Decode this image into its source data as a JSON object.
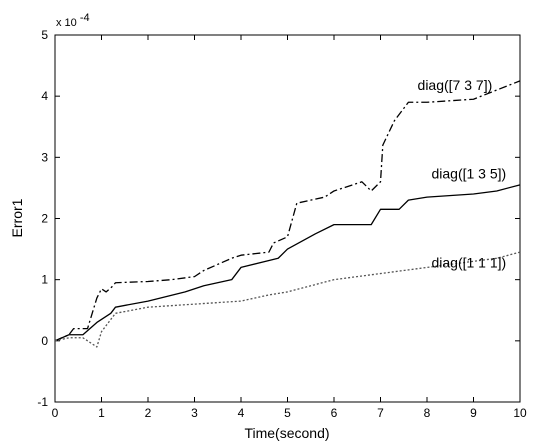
{
  "chart_data": {
    "type": "line",
    "title": "",
    "xlabel": "Time(second)",
    "ylabel": "Error1",
    "y_exponent_label": "x 10",
    "y_exponent_power": "-4",
    "xlim": [
      0,
      10
    ],
    "ylim": [
      -1,
      5
    ],
    "x_ticks": [
      "0",
      "1",
      "2",
      "3",
      "4",
      "5",
      "6",
      "7",
      "8",
      "9",
      "10"
    ],
    "y_ticks": [
      "-1",
      "0",
      "1",
      "2",
      "3",
      "4",
      "5"
    ],
    "grid": false,
    "legend": "none",
    "series": [
      {
        "label": "diag([7 3 7])",
        "style": "dashdot",
        "color": "#000000",
        "x": [
          0,
          0.3,
          0.4,
          0.7,
          0.8,
          0.9,
          1.0,
          1.1,
          1.25,
          1.3,
          2.0,
          2.5,
          3.0,
          3.2,
          3.8,
          4.0,
          4.6,
          4.7,
          5.0,
          5.2,
          5.5,
          5.8,
          6.0,
          6.6,
          6.8,
          7.0,
          7.05,
          7.3,
          7.6,
          8.0,
          9.0,
          9.5,
          10.0
        ],
        "y": [
          0,
          0.1,
          0.2,
          0.2,
          0.45,
          0.7,
          0.85,
          0.8,
          0.9,
          0.95,
          0.97,
          1.0,
          1.05,
          1.15,
          1.35,
          1.4,
          1.45,
          1.6,
          1.7,
          2.25,
          2.3,
          2.35,
          2.45,
          2.6,
          2.45,
          2.6,
          3.2,
          3.6,
          3.9,
          3.9,
          3.95,
          4.1,
          4.25
        ]
      },
      {
        "label": "diag([1 3 5])",
        "style": "solid",
        "color": "#000000",
        "x": [
          0,
          0.3,
          0.6,
          0.9,
          1.2,
          1.3,
          2.0,
          2.8,
          3.2,
          3.8,
          4.0,
          4.8,
          5.0,
          5.6,
          6.0,
          6.8,
          7.0,
          7.4,
          7.6,
          8.0,
          9.0,
          9.5,
          10.0
        ],
        "y": [
          0,
          0.1,
          0.1,
          0.3,
          0.45,
          0.55,
          0.65,
          0.8,
          0.9,
          1.0,
          1.2,
          1.35,
          1.5,
          1.75,
          1.9,
          1.9,
          2.15,
          2.15,
          2.3,
          2.35,
          2.4,
          2.45,
          2.55
        ]
      },
      {
        "label": "diag([1 1 1])",
        "style": "dotted",
        "color": "#555555",
        "x": [
          0,
          0.3,
          0.6,
          0.9,
          1.0,
          1.3,
          2.0,
          3.0,
          4.0,
          4.6,
          5.0,
          5.5,
          6.0,
          7.0,
          8.0,
          9.0,
          9.5,
          10.0
        ],
        "y": [
          0,
          0.05,
          0.05,
          -0.1,
          0.15,
          0.45,
          0.55,
          0.6,
          0.65,
          0.75,
          0.8,
          0.9,
          1.0,
          1.1,
          1.2,
          1.3,
          1.35,
          1.45
        ]
      }
    ],
    "annotations": [
      {
        "text": "diag([7 3 7])",
        "x": 8.6,
        "y": 4.1
      },
      {
        "text": "diag([1 3 5])",
        "x": 8.9,
        "y": 2.65
      },
      {
        "text": "diag([1 1 1])",
        "x": 8.9,
        "y": 1.2
      }
    ]
  }
}
